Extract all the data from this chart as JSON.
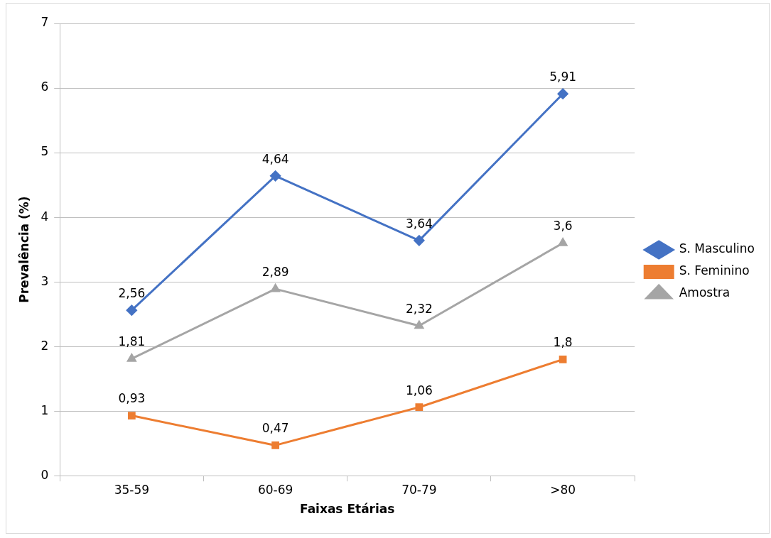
{
  "chart_data": {
    "type": "line",
    "xlabel": "Faixas Etárias",
    "ylabel": "Prevalência (%)",
    "categories": [
      "35-59",
      "60-69",
      "70-79",
      ">80"
    ],
    "series": [
      {
        "name": "S. Masculino",
        "color": "#4472c4",
        "marker": "diamond",
        "values": [
          2.56,
          4.64,
          3.64,
          5.91
        ],
        "value_labels": [
          "2,56",
          "4,64",
          "3,64",
          "5,91"
        ]
      },
      {
        "name": "S. Feminino",
        "color": "#ed7d31",
        "marker": "square",
        "values": [
          0.93,
          0.47,
          1.06,
          1.8
        ],
        "value_labels": [
          "0,93",
          "0,47",
          "1,06",
          "1,8"
        ]
      },
      {
        "name": "Amostra",
        "color": "#a5a5a5",
        "marker": "triangle",
        "values": [
          1.81,
          2.89,
          2.32,
          3.6
        ],
        "value_labels": [
          "1,81",
          "2,89",
          "2,32",
          "3,6"
        ]
      }
    ],
    "ylim": [
      0,
      7
    ],
    "yticks": [
      0,
      1,
      2,
      3,
      4,
      5,
      6,
      7
    ],
    "grid": "y",
    "legend": "right"
  }
}
